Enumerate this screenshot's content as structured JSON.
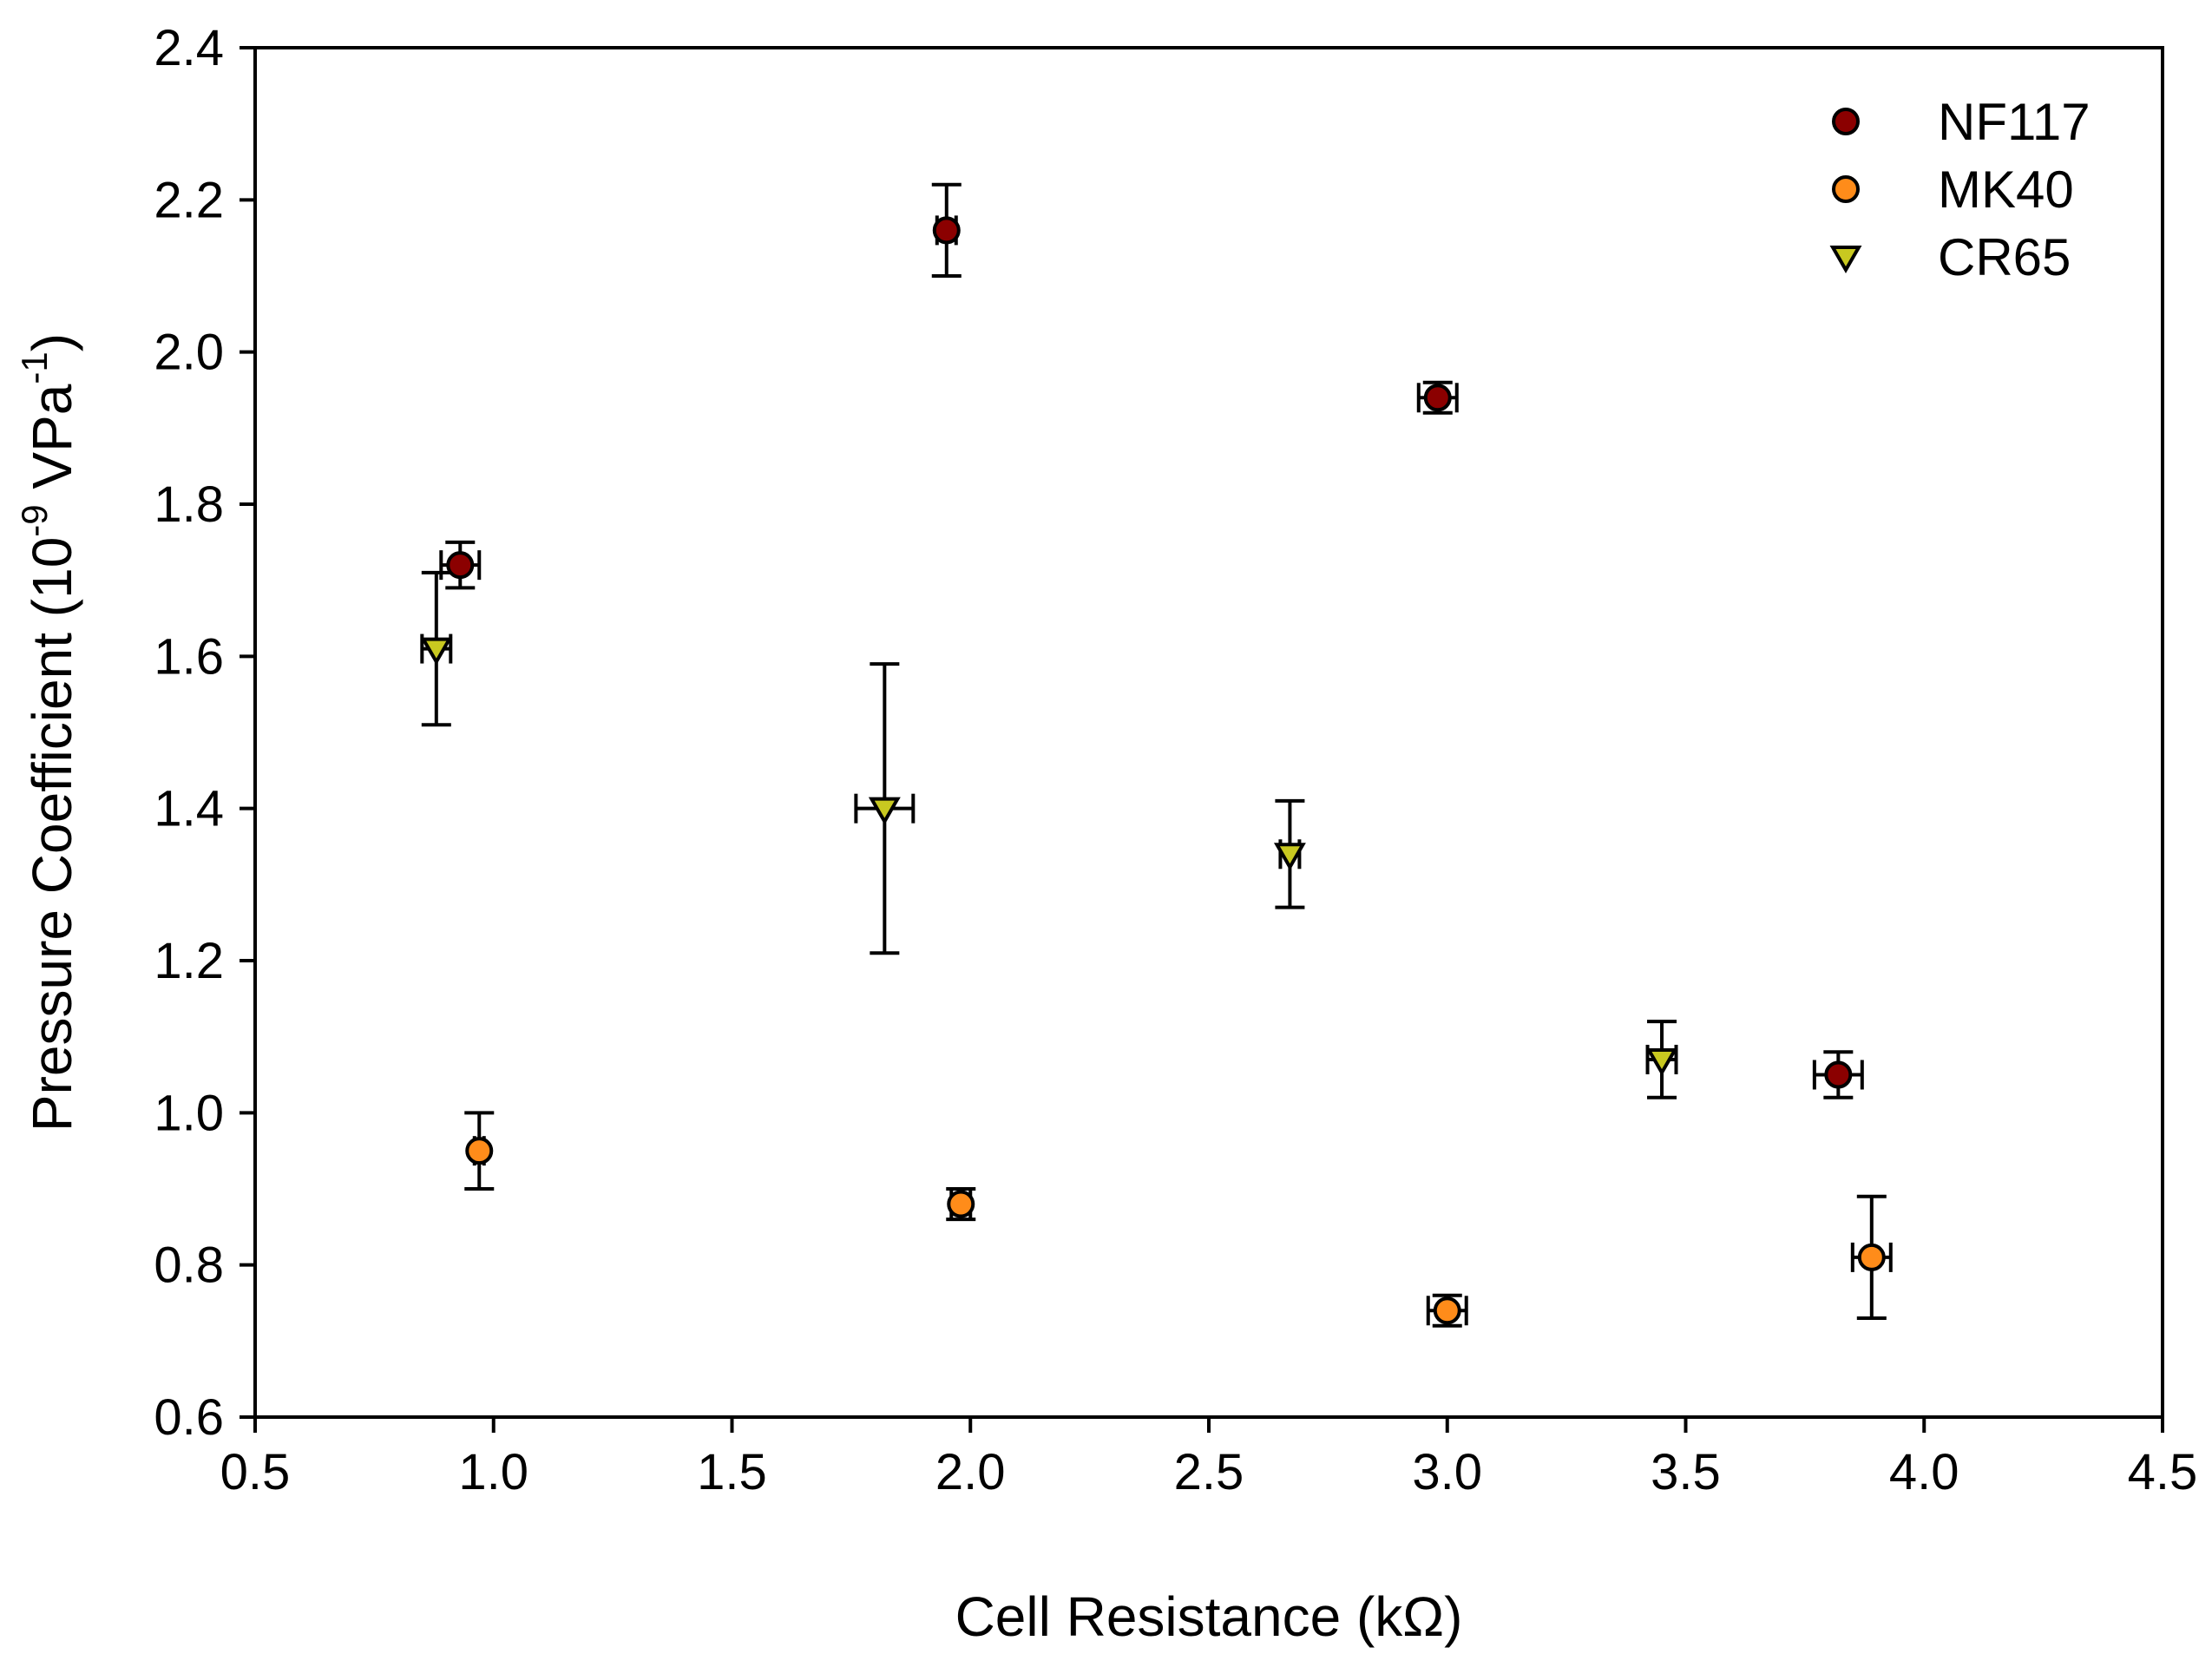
{
  "chart_data": {
    "type": "scatter",
    "title": "",
    "xlabel": "Cell Resistance (kΩ)",
    "ylabel_main": "Pressure Coefficient (10",
    "ylabel_exp1": "-9",
    "ylabel_mid": " VPa",
    "ylabel_exp2": "-1",
    "ylabel_end": ")",
    "xlim": [
      0.5,
      4.5
    ],
    "ylim": [
      0.6,
      2.4
    ],
    "xticks": [
      "0.5",
      "1.0",
      "1.5",
      "2.0",
      "2.5",
      "3.0",
      "3.5",
      "4.0",
      "4.5"
    ],
    "yticks": [
      "0.6",
      "0.8",
      "1.0",
      "1.2",
      "1.4",
      "1.6",
      "1.8",
      "2.0",
      "2.2",
      "2.4"
    ],
    "legend_position": "top-right",
    "series": [
      {
        "name": "NF117",
        "marker": "circle",
        "color": "#8b0000",
        "points": [
          {
            "x": 0.93,
            "y": 1.72,
            "xerr": 0.04,
            "yerr": 0.03
          },
          {
            "x": 1.95,
            "y": 2.16,
            "xerr": 0.02,
            "yerr": 0.06
          },
          {
            "x": 2.98,
            "y": 1.94,
            "xerr": 0.04,
            "yerr": 0.02
          },
          {
            "x": 3.82,
            "y": 1.05,
            "xerr": 0.05,
            "yerr": 0.03
          }
        ]
      },
      {
        "name": "MK40",
        "marker": "circle",
        "color": "#ff8c1a",
        "points": [
          {
            "x": 0.97,
            "y": 0.95,
            "xerr": 0.01,
            "yerr": 0.05
          },
          {
            "x": 1.98,
            "y": 0.88,
            "xerr": 0.02,
            "yerr": 0.02
          },
          {
            "x": 3.0,
            "y": 0.74,
            "xerr": 0.04,
            "yerr": 0.02
          },
          {
            "x": 3.89,
            "y": 0.81,
            "xerr": 0.04,
            "yerr": 0.08
          }
        ]
      },
      {
        "name": "CR65",
        "marker": "triangle-down",
        "color": "#c8c820",
        "points": [
          {
            "x": 0.88,
            "y": 1.61,
            "xerr": 0.03,
            "yerr": 0.1
          },
          {
            "x": 1.82,
            "y": 1.4,
            "xerr": 0.06,
            "yerr": 0.19
          },
          {
            "x": 2.67,
            "y": 1.34,
            "xerr": 0.02,
            "yerr": 0.07
          },
          {
            "x": 3.45,
            "y": 1.07,
            "xerr": 0.03,
            "yerr": 0.05
          }
        ]
      }
    ]
  }
}
